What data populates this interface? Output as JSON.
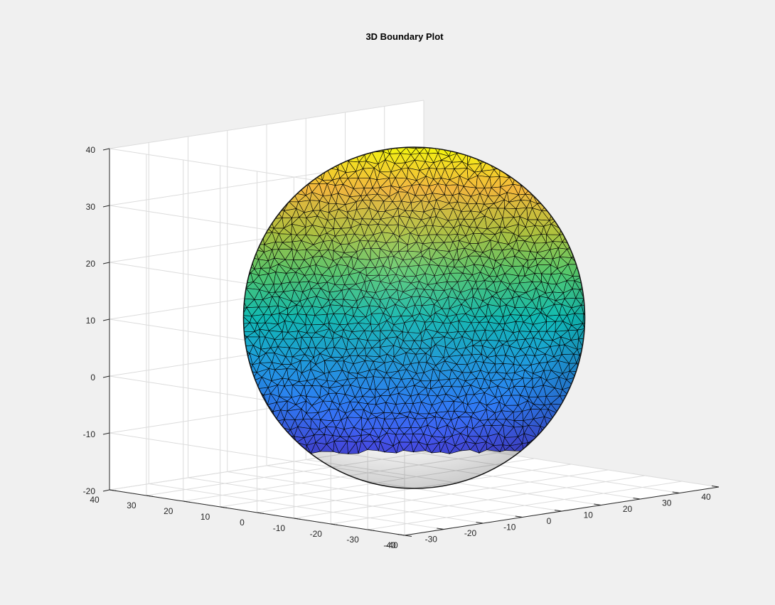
{
  "chart_data": {
    "type": "surface3d",
    "title": "3D Boundary Plot",
    "shape": "sphere",
    "center": {
      "x": 0,
      "y": 0,
      "z": 10
    },
    "radius": 30,
    "surface": "triangulated mesh with black edges",
    "colormap": "parula",
    "color_by": "z",
    "grid": true,
    "box": "open axes",
    "x_axis": {
      "range": [
        -40,
        40
      ],
      "ticks": [
        "-40",
        "-30",
        "-20",
        "-10",
        "0",
        "10",
        "20",
        "30",
        "40"
      ]
    },
    "y_axis": {
      "range": [
        -40,
        40
      ],
      "ticks": [
        "-40",
        "-30",
        "-20",
        "-10",
        "0",
        "10",
        "20",
        "30",
        "40"
      ]
    },
    "z_axis": {
      "range": [
        -20,
        40
      ],
      "ticks": [
        "-20",
        "-10",
        "0",
        "10",
        "20",
        "30",
        "40"
      ]
    }
  },
  "colors": {
    "background": "#f0f0f0",
    "axes_face": "#ffffff",
    "grid": "#dcdcdc",
    "axis": "#262626",
    "mesh_edge": "#000000"
  }
}
